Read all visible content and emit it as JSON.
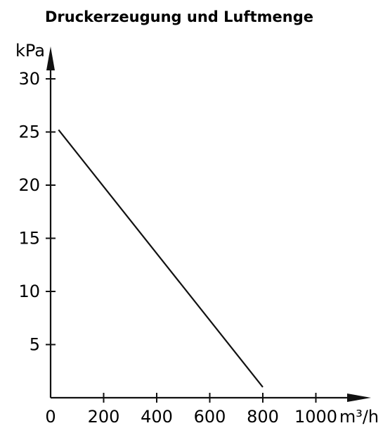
{
  "chart_data": {
    "type": "line",
    "title": "Druckerzeugung und Luftmenge",
    "xlabel": "m³/h",
    "ylabel": "kPa",
    "xlim": [
      0,
      1000
    ],
    "ylim": [
      0,
      30
    ],
    "x_ticks": [
      0,
      200,
      400,
      600,
      800,
      1000
    ],
    "y_ticks": [
      5,
      10,
      15,
      20,
      25,
      30
    ],
    "grid": false,
    "series": [
      {
        "x": [
          30,
          800
        ],
        "y": [
          25.2,
          1.0
        ]
      }
    ],
    "line_color": "#111111"
  }
}
